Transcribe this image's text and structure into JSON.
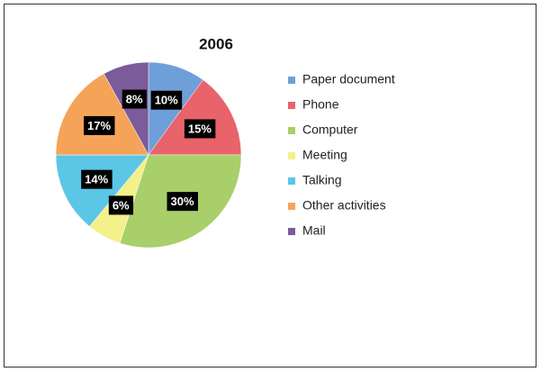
{
  "chart_data": {
    "type": "pie",
    "title": "2006",
    "categories": [
      "Paper document",
      "Phone",
      "Computer",
      "Meeting",
      "Talking",
      "Other activities",
      "Mail"
    ],
    "values": [
      10,
      15,
      30,
      6,
      14,
      17,
      8
    ],
    "value_labels": [
      "10%",
      "15%",
      "30%",
      "6%",
      "14%",
      "17%",
      "8%"
    ],
    "colors": [
      "#6f9fd8",
      "#e8636a",
      "#a8cf6a",
      "#f4f08a",
      "#5bc6e6",
      "#f6a35a",
      "#7b5b9a"
    ],
    "legend": "right"
  }
}
